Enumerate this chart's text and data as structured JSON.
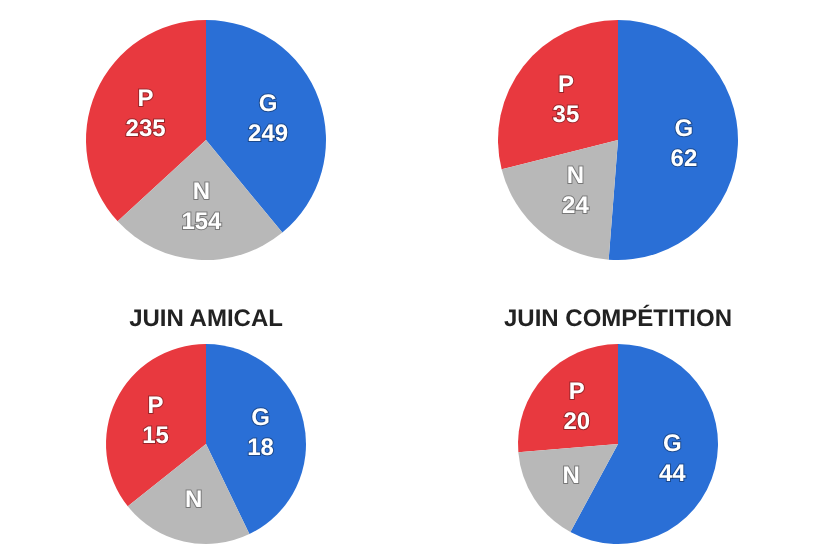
{
  "chart_data": [
    {
      "type": "pie",
      "categories": [
        "P",
        "G",
        "N"
      ],
      "values": [
        235,
        249,
        154
      ],
      "colors": [
        "#e8393f",
        "#2a6fd6",
        "#b8b8b8"
      ],
      "data_labels": true
    },
    {
      "type": "pie",
      "categories": [
        "P",
        "G",
        "N"
      ],
      "values": [
        35,
        62,
        24
      ],
      "colors": [
        "#e8393f",
        "#2a6fd6",
        "#b8b8b8"
      ],
      "data_labels": true
    },
    {
      "type": "pie",
      "title": "JUIN AMICAL",
      "categories": [
        "P",
        "G",
        "N"
      ],
      "values": [
        15,
        18,
        9
      ],
      "colors": [
        "#e8393f",
        "#2a6fd6",
        "#b8b8b8"
      ],
      "value_labels": [
        "15",
        "18",
        null
      ]
    },
    {
      "type": "pie",
      "title": "JUIN COMPÉTITION",
      "categories": [
        "P",
        "G",
        "N"
      ],
      "values": [
        20,
        44,
        12
      ],
      "colors": [
        "#e8393f",
        "#2a6fd6",
        "#b8b8b8"
      ],
      "value_labels": [
        "20",
        "44",
        null
      ]
    }
  ]
}
